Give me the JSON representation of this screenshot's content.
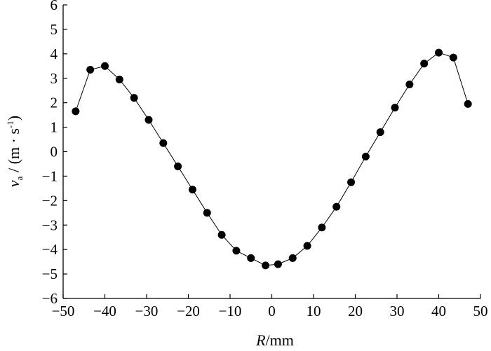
{
  "chart_data": {
    "type": "line",
    "xlabel": "R/mm",
    "ylabel": "v_a / (m · s⁻¹)",
    "xlim": [
      -50,
      50
    ],
    "ylim": [
      -6,
      6
    ],
    "xticks": [
      -50,
      -40,
      -30,
      -20,
      -10,
      0,
      10,
      20,
      30,
      40,
      50
    ],
    "yticks": [
      -6,
      -5,
      -4,
      -3,
      -2,
      -1,
      0,
      1,
      2,
      3,
      4,
      5,
      6
    ],
    "grid": false,
    "markers": "filled-circle",
    "series": [
      {
        "x": [
          -47,
          -43.5,
          -40,
          -36.5,
          -33,
          -29.5,
          -26,
          -22.5,
          -19,
          -15.5,
          -12,
          -8.5,
          -5,
          -1.5,
          1.5,
          5,
          8.5,
          12,
          15.5,
          19,
          22.5,
          26,
          29.5,
          33,
          36.5,
          40,
          43.5,
          47
        ],
        "y": [
          1.65,
          3.35,
          3.5,
          2.95,
          2.2,
          1.3,
          0.35,
          -0.6,
          -1.55,
          -2.5,
          -3.4,
          -4.05,
          -4.35,
          -4.65,
          -4.6,
          -4.35,
          -3.85,
          -3.1,
          -2.25,
          -1.25,
          -0.2,
          0.8,
          1.8,
          2.75,
          3.6,
          4.05,
          3.85,
          1.95
        ]
      }
    ]
  }
}
